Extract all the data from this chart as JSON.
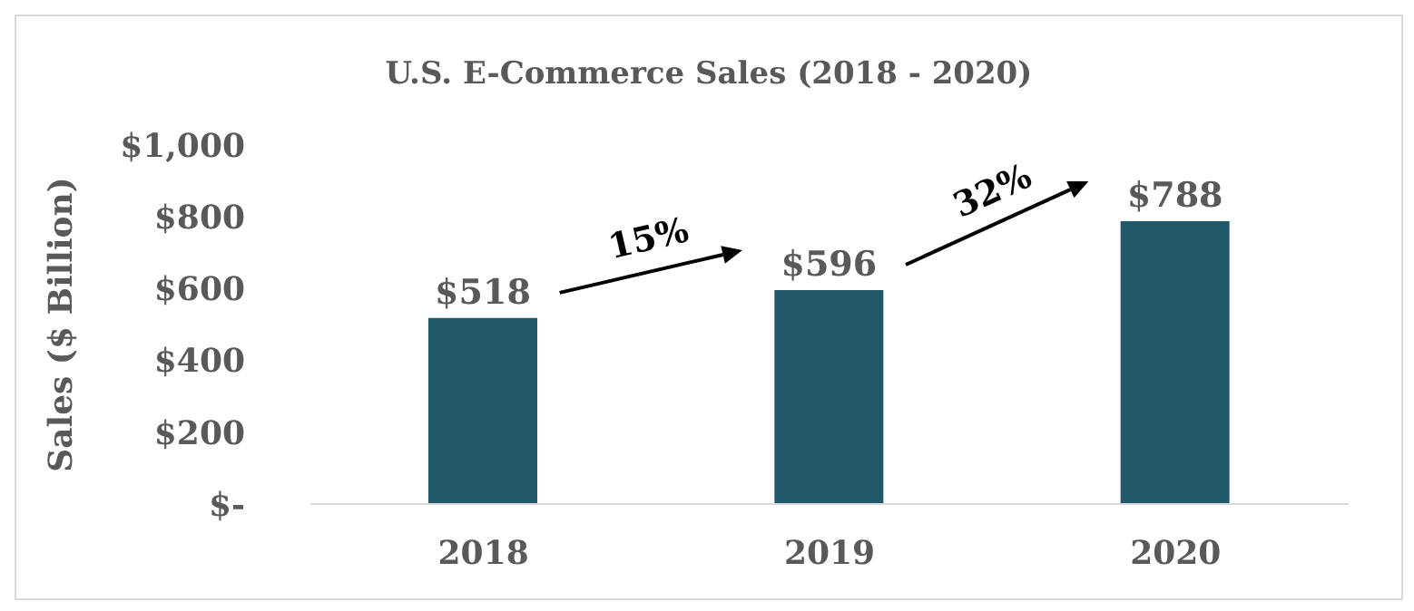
{
  "chart_data": {
    "type": "bar",
    "title": "U.S. E-Commerce Sales (2018 - 2020)",
    "ylabel": "Sales ($ Billion)",
    "categories": [
      "2018",
      "2019",
      "2020"
    ],
    "values": [
      518,
      596,
      788
    ],
    "value_labels": [
      "$518",
      "$596",
      "$788"
    ],
    "color": "#215968",
    "ylim": [
      0,
      1000
    ],
    "yticks": [
      {
        "value": 0,
        "label": "$-"
      },
      {
        "value": 200,
        "label": "$200"
      },
      {
        "value": 400,
        "label": "$400"
      },
      {
        "value": 600,
        "label": "$600"
      },
      {
        "value": 800,
        "label": "$800"
      },
      {
        "value": 1000,
        "label": "$1,000"
      }
    ],
    "annotations": [
      "15%",
      "32%"
    ],
    "grid": false,
    "legend": false
  }
}
